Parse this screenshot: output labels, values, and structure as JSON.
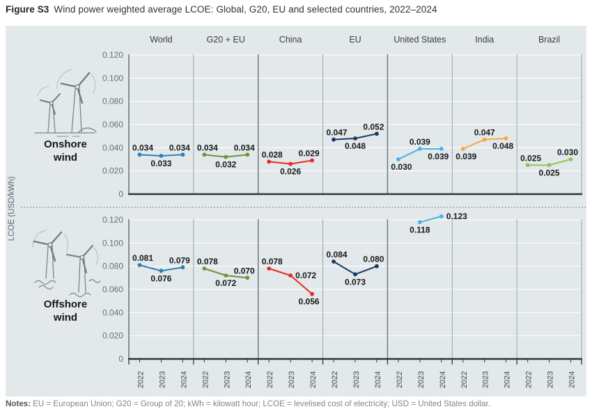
{
  "title": {
    "tag": "Figure S3",
    "text": "Wind power weighted average LCOE: Global, G20, EU and selected countries, 2022–2024"
  },
  "y_axis_label": "LCOE (USD/kWh)",
  "column_headers": [
    "World",
    "G20 + EU",
    "China",
    "EU",
    "United States",
    "India",
    "Brazil"
  ],
  "years": [
    "2022",
    "2023",
    "2024"
  ],
  "y_tick_labels": [
    "0.120",
    "0.100",
    "0.080",
    "0.060",
    "0.040",
    "0.020",
    "0"
  ],
  "rows": [
    {
      "label": "Onshore wind",
      "icon": "onshore-wind-turbines-icon"
    },
    {
      "label": "Offshore wind",
      "icon": "offshore-wind-turbines-icon"
    }
  ],
  "notes": {
    "tag": "Notes:",
    "text": "EU = European Union; G20 = Group of 20; kWh = kilowatt hour; LCOE = levelised cost of electricity; USD = United States dollar."
  },
  "colors": {
    "world": "#2e7eb5",
    "g20_eu": "#70923f",
    "china": "#e62a22",
    "eu": "#173a63",
    "united_states": "#44b3e3",
    "india": "#f8a93c",
    "brazil": "#8ec652",
    "panel_bg": "#e3e8eb",
    "gridline": "#ffffff",
    "baseline": "#2f3437",
    "divider": "#9aa4a9",
    "divider_strong": "#69737a"
  },
  "chart_data": [
    {
      "type": "line",
      "title": "Onshore wind",
      "x": [
        "2022",
        "2023",
        "2024"
      ],
      "ylabel": "LCOE (USD/kWh)",
      "ylim": [
        0,
        0.12
      ],
      "ytick_step": 0.02,
      "grid": true,
      "series": [
        {
          "name": "World",
          "color": "#2e7eb5",
          "values": [
            0.034,
            0.033,
            0.034
          ],
          "label_pos": [
            "above",
            "below",
            "above"
          ]
        },
        {
          "name": "G20 + EU",
          "color": "#70923f",
          "values": [
            0.034,
            0.032,
            0.034
          ],
          "label_pos": [
            "above",
            "below",
            "above"
          ]
        },
        {
          "name": "China",
          "color": "#e62a22",
          "values": [
            0.028,
            0.026,
            0.029
          ],
          "label_pos": [
            "above",
            "below",
            "above"
          ]
        },
        {
          "name": "EU",
          "color": "#173a63",
          "values": [
            0.047,
            0.048,
            0.052
          ],
          "label_pos": [
            "above",
            "below",
            "above"
          ]
        },
        {
          "name": "United States",
          "color": "#44b3e3",
          "values": [
            0.03,
            0.039,
            0.039
          ],
          "label_pos": [
            "below",
            "above",
            "below"
          ]
        },
        {
          "name": "India",
          "color": "#f8a93c",
          "values": [
            0.039,
            0.047,
            0.048
          ],
          "label_pos": [
            "below",
            "above",
            "below"
          ]
        },
        {
          "name": "Brazil",
          "color": "#8ec652",
          "values": [
            0.025,
            0.025,
            0.03
          ],
          "label_pos": [
            "above",
            "below",
            "above"
          ]
        }
      ]
    },
    {
      "type": "line",
      "title": "Offshore wind",
      "x": [
        "2022",
        "2023",
        "2024"
      ],
      "ylabel": "LCOE (USD/kWh)",
      "ylim": [
        0,
        0.12
      ],
      "ytick_step": 0.02,
      "grid": true,
      "series": [
        {
          "name": "World",
          "color": "#2e7eb5",
          "values": [
            0.081,
            0.076,
            0.079
          ],
          "label_pos": [
            "above",
            "below",
            "above"
          ]
        },
        {
          "name": "G20 + EU",
          "color": "#70923f",
          "values": [
            0.078,
            0.072,
            0.07
          ],
          "label_pos": [
            "above",
            "below",
            "above"
          ]
        },
        {
          "name": "China",
          "color": "#e62a22",
          "values": [
            0.078,
            0.072,
            0.056
          ],
          "label_pos": [
            "above",
            "right",
            "below"
          ]
        },
        {
          "name": "EU",
          "color": "#173a63",
          "values": [
            0.084,
            0.073,
            0.08
          ],
          "label_pos": [
            "above",
            "below",
            "above"
          ]
        },
        {
          "name": "United States",
          "color": "#44b3e3",
          "values": [
            null,
            0.118,
            0.123
          ],
          "label_pos": [
            null,
            "below",
            "right"
          ]
        },
        {
          "name": "India",
          "color": "#f8a93c",
          "values": [
            null,
            null,
            null
          ],
          "label_pos": [
            null,
            null,
            null
          ]
        },
        {
          "name": "Brazil",
          "color": "#8ec652",
          "values": [
            null,
            null,
            null
          ],
          "label_pos": [
            null,
            null,
            null
          ]
        }
      ]
    }
  ]
}
